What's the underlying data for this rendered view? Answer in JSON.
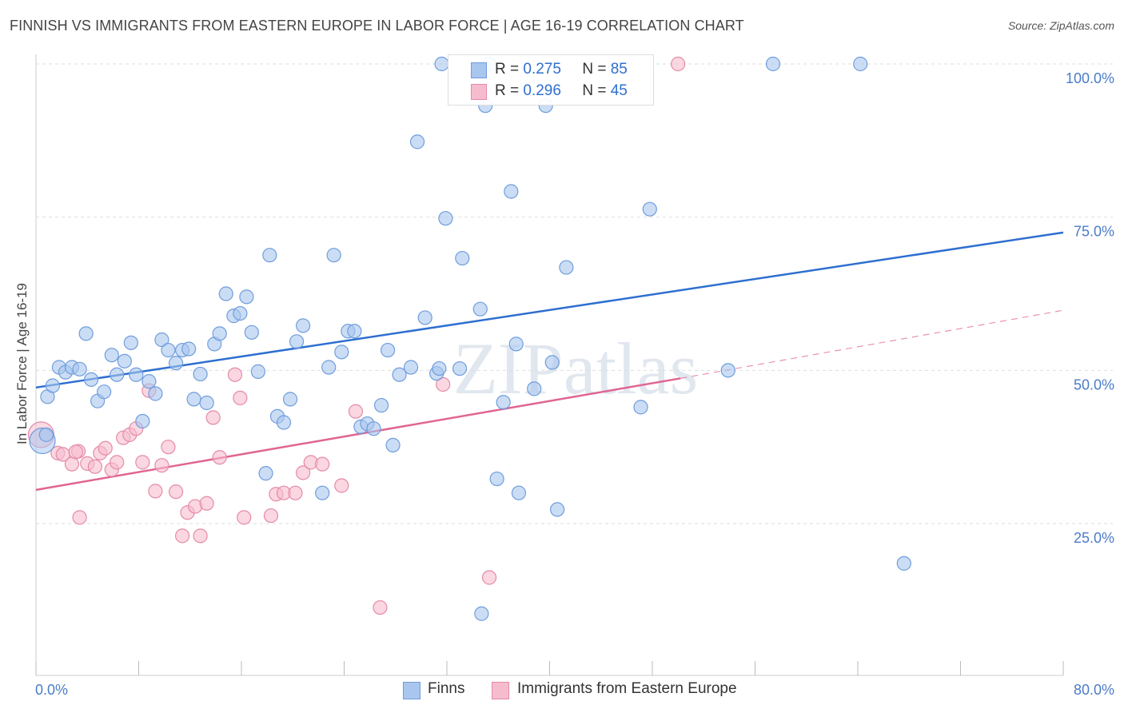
{
  "title": "FINNISH VS IMMIGRANTS FROM EASTERN EUROPE IN LABOR FORCE | AGE 16-19 CORRELATION CHART",
  "source": "Source: ZipAtlas.com",
  "watermark": "ZIPatlas",
  "legend": {
    "row1": {
      "r_label": "R = ",
      "r_value": "0.275",
      "n_label": "N = ",
      "n_value": "85"
    },
    "row2": {
      "r_label": "R = ",
      "r_value": "0.296",
      "n_label": "N = ",
      "n_value": "45"
    }
  },
  "colors": {
    "finns_fill": "#a9c6ee",
    "finns_stroke": "#6f9ddc",
    "finns_line": "#2e6fd0",
    "imm_fill": "#f6bccd",
    "imm_stroke": "#e58aa8",
    "imm_line": "#e06592"
  },
  "chart_data": {
    "type": "scatter",
    "title": "FINNISH VS IMMIGRANTS FROM EASTERN EUROPE IN LABOR FORCE | AGE 16-19 CORRELATION CHART",
    "xlabel": "",
    "ylabel": "In Labor Force | Age 16-19",
    "xlim": [
      0,
      80
    ],
    "ylim": [
      0,
      103
    ],
    "x_tick_labels": [
      "0.0%",
      "80.0%"
    ],
    "y_ticks": [
      25,
      50,
      75,
      100
    ],
    "y_tick_labels": [
      "25.0%",
      "50.0%",
      "75.0%",
      "100.0%"
    ],
    "series": [
      {
        "name": "Finns",
        "r": 0.275,
        "n": 85,
        "trend": {
          "x": [
            0,
            80
          ],
          "y": [
            47.2,
            72.5
          ],
          "style": "solid"
        },
        "points": [
          [
            0.5,
            38.5
          ],
          [
            0.8,
            39.5
          ],
          [
            0.9,
            45.7
          ],
          [
            1.3,
            47.5
          ],
          [
            1.8,
            50.5
          ],
          [
            2.3,
            49.7
          ],
          [
            2.8,
            50.5
          ],
          [
            3.4,
            50.2
          ],
          [
            3.9,
            56.0
          ],
          [
            4.3,
            48.5
          ],
          [
            4.8,
            45.0
          ],
          [
            5.3,
            46.5
          ],
          [
            5.9,
            52.5
          ],
          [
            6.3,
            49.3
          ],
          [
            6.9,
            51.5
          ],
          [
            7.4,
            54.5
          ],
          [
            7.8,
            49.3
          ],
          [
            8.3,
            41.7
          ],
          [
            8.8,
            48.2
          ],
          [
            9.3,
            46.2
          ],
          [
            9.8,
            55.0
          ],
          [
            10.3,
            53.3
          ],
          [
            10.9,
            51.2
          ],
          [
            11.4,
            53.3
          ],
          [
            11.9,
            53.5
          ],
          [
            12.3,
            45.3
          ],
          [
            12.8,
            49.4
          ],
          [
            13.3,
            44.7
          ],
          [
            13.9,
            54.3
          ],
          [
            14.3,
            56.0
          ],
          [
            14.8,
            62.5
          ],
          [
            15.4,
            58.9
          ],
          [
            15.9,
            59.3
          ],
          [
            16.4,
            62.0
          ],
          [
            16.8,
            56.2
          ],
          [
            17.3,
            49.8
          ],
          [
            17.9,
            33.2
          ],
          [
            18.2,
            68.8
          ],
          [
            18.8,
            42.5
          ],
          [
            19.3,
            41.5
          ],
          [
            19.8,
            45.3
          ],
          [
            20.3,
            54.7
          ],
          [
            20.8,
            57.3
          ],
          [
            22.3,
            30.0
          ],
          [
            22.8,
            50.5
          ],
          [
            23.2,
            68.8
          ],
          [
            23.8,
            53.0
          ],
          [
            24.3,
            56.4
          ],
          [
            24.8,
            56.4
          ],
          [
            25.3,
            40.8
          ],
          [
            25.8,
            41.3
          ],
          [
            26.3,
            40.5
          ],
          [
            26.9,
            44.3
          ],
          [
            27.4,
            53.3
          ],
          [
            27.8,
            37.8
          ],
          [
            28.3,
            49.3
          ],
          [
            29.2,
            50.5
          ],
          [
            29.7,
            87.3
          ],
          [
            30.3,
            58.6
          ],
          [
            31.2,
            49.5
          ],
          [
            31.6,
            100.0
          ],
          [
            31.9,
            74.8
          ],
          [
            33.0,
            50.3
          ],
          [
            33.2,
            68.3
          ],
          [
            34.6,
            60.0
          ],
          [
            34.7,
            10.3
          ],
          [
            35.0,
            93.2
          ],
          [
            35.3,
            100.0
          ],
          [
            35.9,
            32.3
          ],
          [
            36.4,
            44.8
          ],
          [
            37.0,
            79.2
          ],
          [
            37.4,
            54.3
          ],
          [
            37.6,
            30.0
          ],
          [
            38.8,
            47.0
          ],
          [
            39.7,
            93.2
          ],
          [
            40.2,
            51.3
          ],
          [
            40.6,
            27.3
          ],
          [
            41.3,
            66.8
          ],
          [
            47.1,
            44.0
          ],
          [
            47.8,
            76.3
          ],
          [
            53.9,
            50.0
          ],
          [
            57.4,
            100.0
          ],
          [
            64.2,
            100.0
          ],
          [
            67.6,
            18.5
          ],
          [
            31.4,
            50.3
          ]
        ]
      },
      {
        "name": "Immigrants from Eastern Europe",
        "r": 0.296,
        "n": 45,
        "trend": {
          "x": [
            0,
            50.2,
            80
          ],
          "y": [
            30.5,
            48.7,
            59.8
          ],
          "style": "solid-then-dashed"
        },
        "points": [
          [
            0.4,
            39.5
          ],
          [
            1.7,
            36.5
          ],
          [
            2.1,
            36.3
          ],
          [
            2.8,
            34.7
          ],
          [
            3.3,
            36.8
          ],
          [
            3.4,
            26.0
          ],
          [
            4.0,
            34.8
          ],
          [
            4.6,
            34.3
          ],
          [
            5.0,
            36.5
          ],
          [
            5.4,
            37.3
          ],
          [
            5.9,
            33.8
          ],
          [
            6.3,
            35.0
          ],
          [
            6.8,
            39.0
          ],
          [
            7.3,
            39.5
          ],
          [
            7.8,
            40.5
          ],
          [
            8.3,
            35.0
          ],
          [
            8.8,
            46.7
          ],
          [
            9.3,
            30.3
          ],
          [
            9.8,
            34.5
          ],
          [
            10.3,
            37.5
          ],
          [
            10.9,
            30.2
          ],
          [
            11.4,
            23.0
          ],
          [
            11.8,
            26.8
          ],
          [
            12.4,
            27.8
          ],
          [
            12.8,
            23.0
          ],
          [
            13.3,
            28.3
          ],
          [
            13.8,
            42.3
          ],
          [
            14.3,
            35.8
          ],
          [
            15.5,
            49.3
          ],
          [
            15.9,
            45.5
          ],
          [
            16.2,
            26.0
          ],
          [
            18.3,
            26.3
          ],
          [
            18.7,
            29.8
          ],
          [
            19.3,
            30.0
          ],
          [
            20.2,
            30.0
          ],
          [
            20.8,
            33.3
          ],
          [
            21.4,
            35.0
          ],
          [
            22.3,
            34.7
          ],
          [
            23.8,
            31.2
          ],
          [
            24.9,
            43.3
          ],
          [
            26.8,
            11.3
          ],
          [
            31.7,
            47.7
          ],
          [
            35.3,
            16.2
          ],
          [
            50.0,
            100.0
          ],
          [
            3.1,
            36.7
          ]
        ]
      }
    ]
  }
}
